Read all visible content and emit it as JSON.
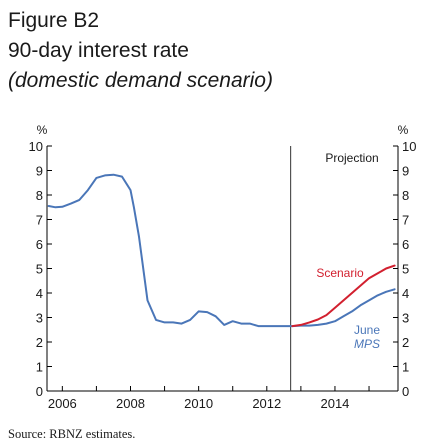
{
  "figure": {
    "label": "Figure B2",
    "title": "90-day interest rate",
    "subtitle": "(domestic demand scenario)"
  },
  "source_note": "Source: RBNZ estimates.",
  "chart_data": {
    "type": "line",
    "left_unit": "%",
    "right_unit": "%",
    "ylim": [
      0,
      10
    ],
    "y_ticks": [
      0,
      1,
      2,
      3,
      4,
      5,
      6,
      7,
      8,
      9,
      10
    ],
    "xlim": [
      2005.55,
      2015.85
    ],
    "x_tick_labels": [
      "2006",
      "2008",
      "2010",
      "2012",
      "2014"
    ],
    "x_tick_positions": [
      2006,
      2008,
      2010,
      2012,
      2014
    ],
    "projection_start": 2012.7,
    "projection_label": "Projection",
    "grid": false,
    "colors": {
      "Scenario": "#d2202f",
      "June MPS": "#4a76b8",
      "axis": "#000000"
    },
    "series": [
      {
        "name": "June MPS",
        "label_lines": [
          "June",
          "MPS"
        ],
        "x": [
          2005.6,
          2005.8,
          2006.0,
          2006.25,
          2006.5,
          2006.75,
          2007.0,
          2007.25,
          2007.5,
          2007.75,
          2008.0,
          2008.1,
          2008.25,
          2008.5,
          2008.75,
          2009.0,
          2009.25,
          2009.5,
          2009.75,
          2010.0,
          2010.25,
          2010.5,
          2010.75,
          2011.0,
          2011.25,
          2011.5,
          2011.75,
          2012.0,
          2012.25,
          2012.5,
          2012.75,
          2013.0,
          2013.25,
          2013.5,
          2013.75,
          2014.0,
          2014.25,
          2014.5,
          2014.75,
          2015.0,
          2015.25,
          2015.5,
          2015.75
        ],
        "values": [
          7.55,
          7.5,
          7.52,
          7.65,
          7.8,
          8.2,
          8.7,
          8.8,
          8.83,
          8.75,
          8.2,
          7.5,
          6.3,
          3.7,
          2.9,
          2.8,
          2.8,
          2.75,
          2.9,
          3.25,
          3.22,
          3.05,
          2.7,
          2.85,
          2.75,
          2.75,
          2.65,
          2.65,
          2.65,
          2.65,
          2.65,
          2.67,
          2.67,
          2.7,
          2.75,
          2.85,
          3.05,
          3.25,
          3.5,
          3.7,
          3.9,
          4.05,
          4.15
        ]
      },
      {
        "name": "Scenario",
        "label_lines": [
          "Scenario"
        ],
        "x": [
          2012.75,
          2013.0,
          2013.25,
          2013.5,
          2013.75,
          2014.0,
          2014.25,
          2014.5,
          2014.75,
          2015.0,
          2015.25,
          2015.5,
          2015.75
        ],
        "values": [
          2.65,
          2.7,
          2.8,
          2.92,
          3.1,
          3.4,
          3.7,
          4.0,
          4.3,
          4.6,
          4.8,
          5.0,
          5.12
        ]
      }
    ]
  }
}
